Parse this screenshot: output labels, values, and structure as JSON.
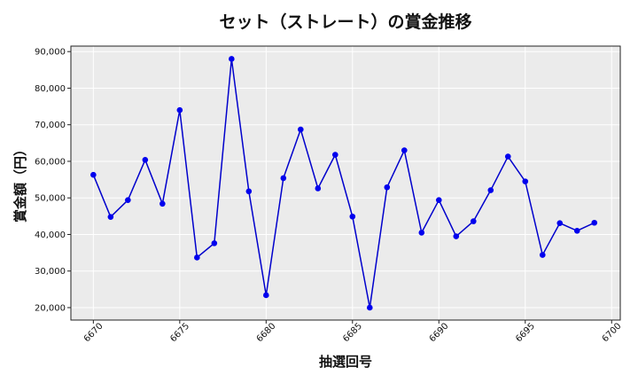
{
  "chart_data": {
    "type": "line",
    "title": "セット（ストレート）の賞金推移",
    "xlabel": "抽選回号",
    "ylabel": "賞金額（円）",
    "xlim": [
      6668.7,
      6700.5
    ],
    "ylim": [
      16600,
      91500
    ],
    "xticks": [
      6670,
      6675,
      6680,
      6685,
      6690,
      6695,
      6700
    ],
    "yticks": [
      20000,
      30000,
      40000,
      50000,
      60000,
      70000,
      80000,
      90000
    ],
    "ytick_labels": [
      "20,000",
      "30,000",
      "40,000",
      "50,000",
      "60,000",
      "70,000",
      "80,000",
      "90,000"
    ],
    "grid": true,
    "legend": "none",
    "colors": {
      "line": "#0000cc",
      "marker": "#0000ee",
      "plot_background": "#ebebeb",
      "grid": "#ffffff"
    },
    "series": [
      {
        "x": [
          6670,
          6671,
          6672,
          6673,
          6674,
          6675,
          6676,
          6677,
          6678,
          6679,
          6680,
          6681,
          6682,
          6683,
          6684,
          6685,
          6686,
          6687,
          6688,
          6689,
          6690,
          6691,
          6692,
          6693,
          6694,
          6695,
          6696,
          6697,
          6698,
          6699
        ],
        "values": [
          56300,
          44800,
          49400,
          60400,
          48400,
          74000,
          33700,
          37600,
          88000,
          51800,
          23400,
          55400,
          68700,
          52600,
          61800,
          44900,
          20000,
          52900,
          63000,
          40500,
          49400,
          39500,
          43600,
          52100,
          61300,
          54500,
          34400,
          43100,
          41000,
          43200
        ]
      }
    ]
  }
}
